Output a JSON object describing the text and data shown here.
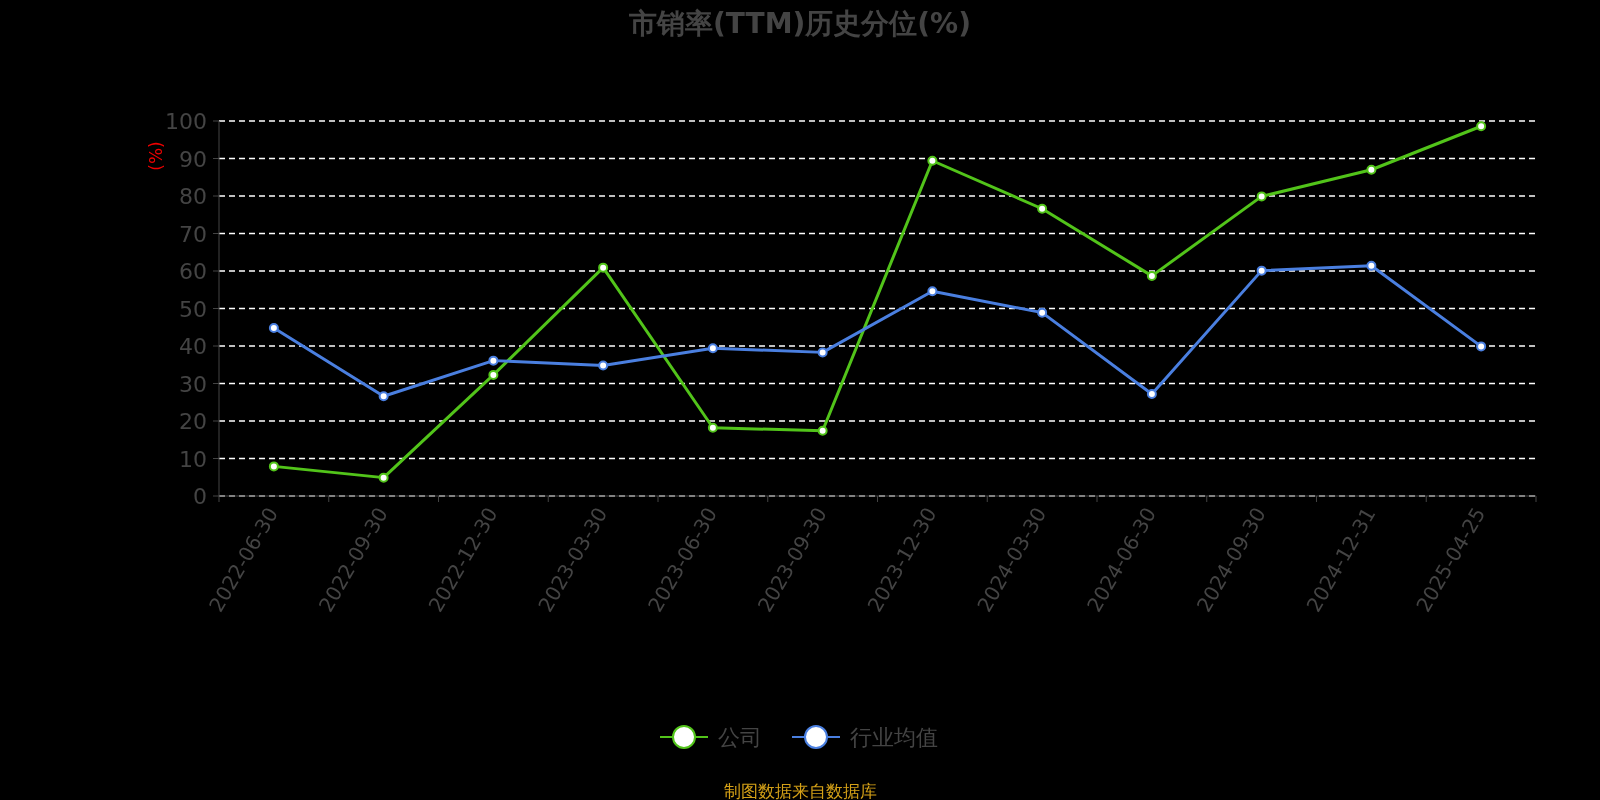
{
  "chart_data": {
    "type": "line",
    "title": "市销率(TTM)历史分位(%)",
    "ylabel": "(%)",
    "categories": [
      "2022-06-30",
      "2022-09-30",
      "2022-12-30",
      "2023-03-30",
      "2023-06-30",
      "2023-09-30",
      "2023-12-30",
      "2024-03-30",
      "2024-06-30",
      "2024-09-30",
      "2024-12-31",
      "2025-04-25"
    ],
    "series": [
      {
        "name": "公司",
        "color": "#52c41a",
        "values": [
          7.9,
          4.9,
          32.3,
          60.9,
          18.2,
          17.4,
          89.4,
          76.6,
          58.7,
          79.9,
          87.0,
          98.6
        ]
      },
      {
        "name": "行业均值",
        "color": "#4a7fe0",
        "values": [
          44.8,
          26.6,
          36.1,
          34.8,
          39.4,
          38.3,
          54.6,
          48.9,
          27.2,
          60.1,
          61.4,
          39.9
        ]
      }
    ],
    "ylim": [
      0,
      100
    ],
    "yticks": [
      0,
      10,
      20,
      30,
      40,
      50,
      60,
      70,
      80,
      90,
      100
    ],
    "grid": "y",
    "legend": "bottom",
    "marker": "circle",
    "line_style": "solid",
    "annotations": [
      "制图数据来自数据库"
    ]
  }
}
